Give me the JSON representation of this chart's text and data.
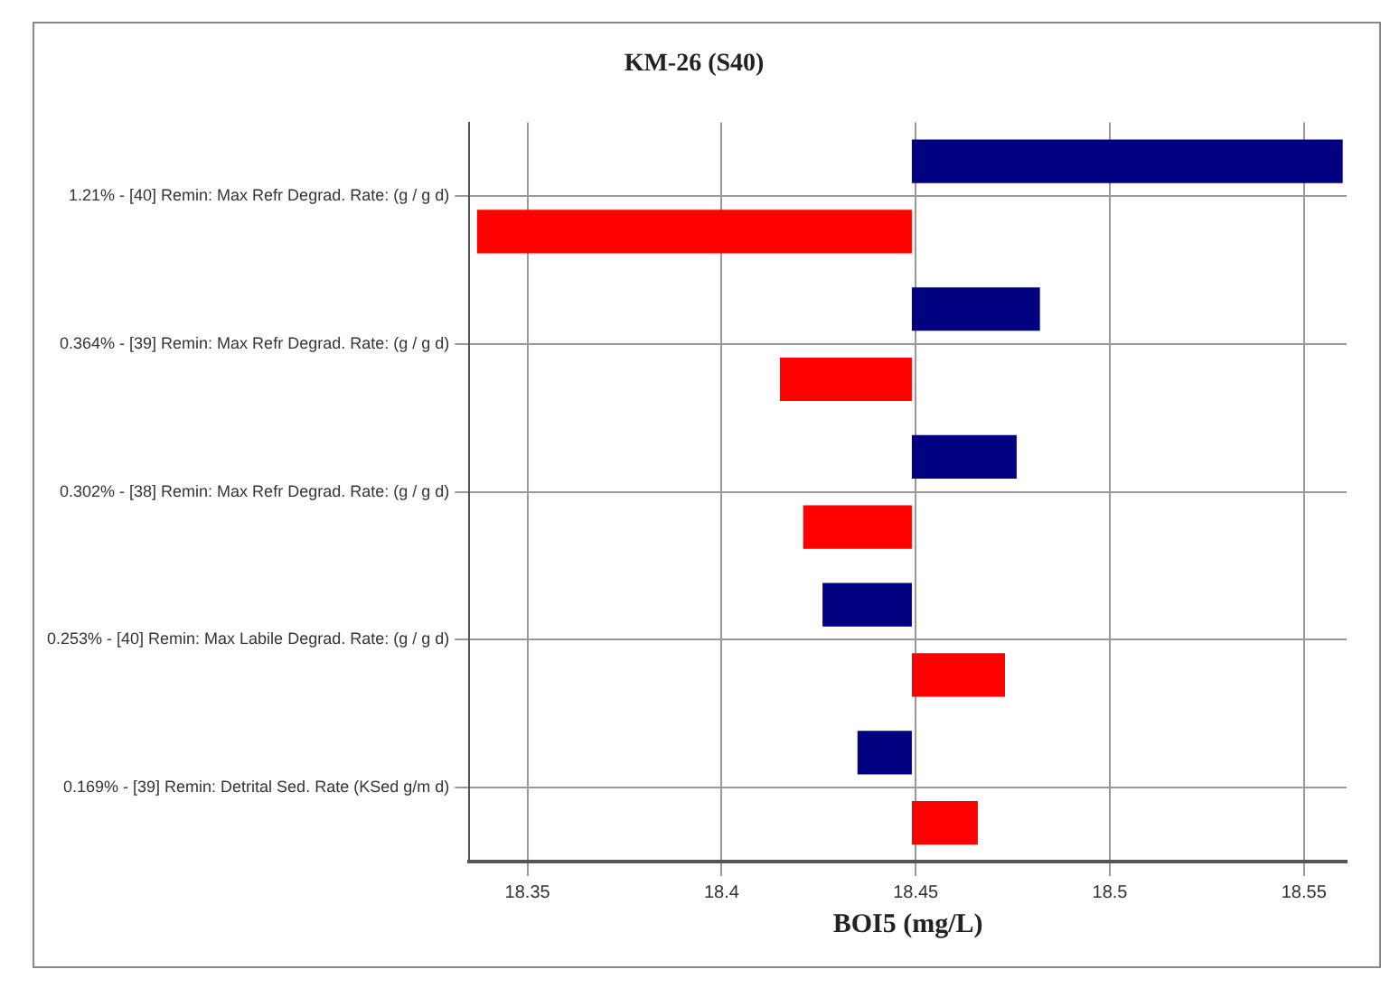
{
  "chart_data": {
    "type": "bar",
    "orientation": "horizontal",
    "title": "KM-26 (S40)",
    "xlabel": "BOI5 (mg/L)",
    "categories": [
      "1.21% - [40] Remin: Max Refr Degrad. Rate: (g / g d)",
      "0.364% - [39] Remin: Max Refr Degrad. Rate: (g / g d)",
      "0.302% - [38] Remin: Max Refr Degrad. Rate: (g / g d)",
      "0.253% - [40] Remin: Max Labile Degrad. Rate: (g / g d)",
      "0.169% - [39] Remin: Detrital Sed. Rate (KSed g/m d)"
    ],
    "series": [
      {
        "color": "#000080",
        "base": [
          18.449,
          18.449,
          18.449,
          18.449,
          18.449
        ],
        "values": [
          0.111,
          0.033,
          0.027,
          -0.023,
          -0.014
        ]
      },
      {
        "color": "#ff0000",
        "base": [
          18.449,
          18.449,
          18.449,
          18.449,
          18.449
        ],
        "values": [
          -0.112,
          -0.034,
          -0.028,
          0.024,
          0.017
        ]
      }
    ],
    "xlim": [
      18.335,
      18.561
    ],
    "xticks": [
      18.35,
      18.4,
      18.45,
      18.5,
      18.55
    ],
    "grid": true,
    "legend": false
  }
}
